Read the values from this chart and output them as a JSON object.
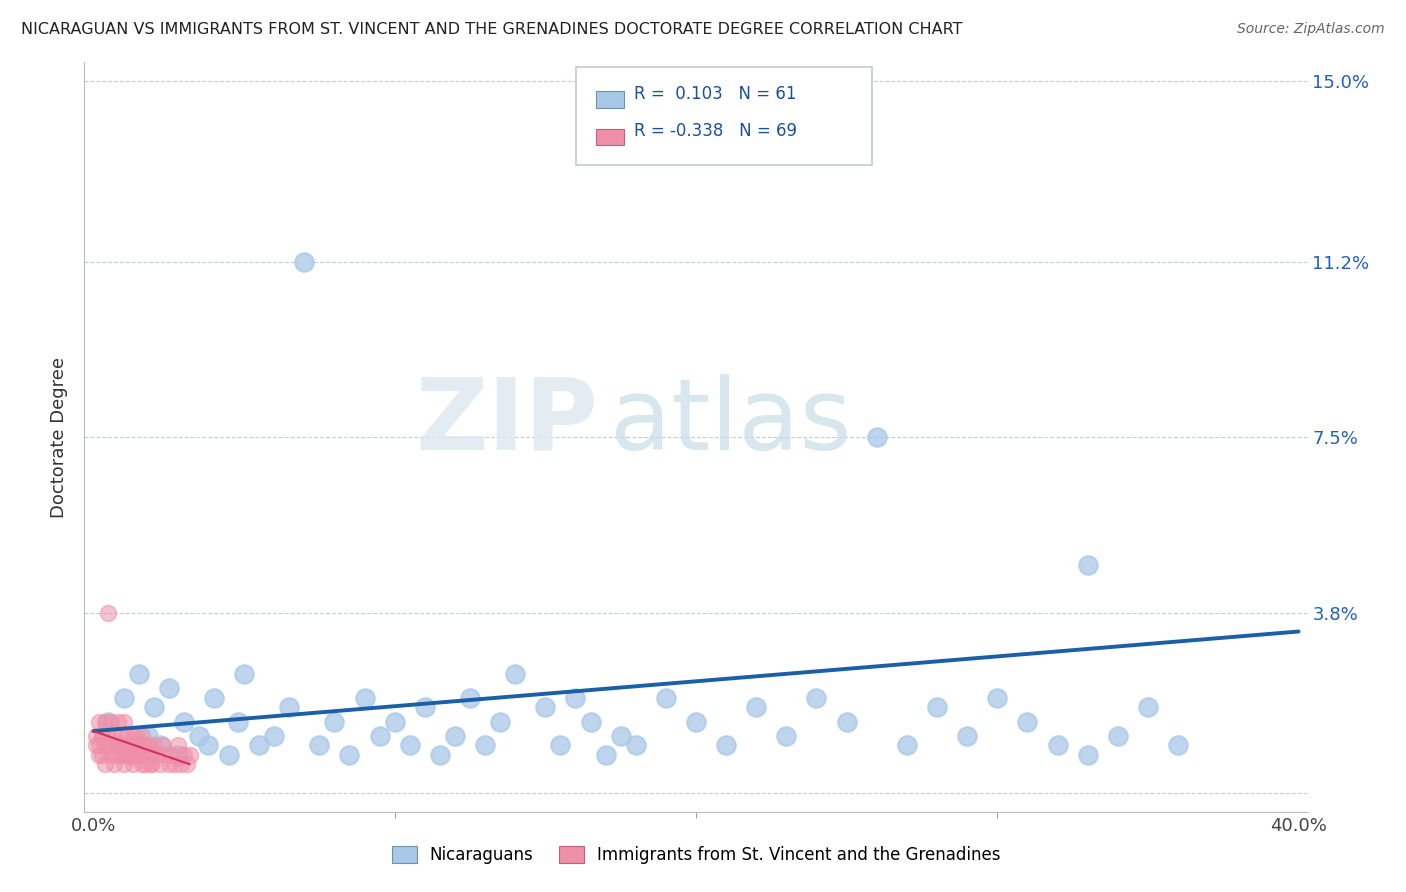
{
  "title": "NICARAGUAN VS IMMIGRANTS FROM ST. VINCENT AND THE GRENADINES DOCTORATE DEGREE CORRELATION CHART",
  "source": "Source: ZipAtlas.com",
  "ylabel": "Doctorate Degree",
  "xlim": [
    0.0,
    0.4
  ],
  "ylim": [
    0.0,
    0.15
  ],
  "yticks": [
    0.0,
    0.038,
    0.075,
    0.112,
    0.15
  ],
  "ytick_labels": [
    "",
    "3.8%",
    "7.5%",
    "11.2%",
    "15.0%"
  ],
  "xticks": [
    0.0,
    0.4
  ],
  "xtick_labels": [
    "0.0%",
    "40.0%"
  ],
  "blue_color": "#a8c8e8",
  "pink_color": "#f090a8",
  "line_blue_color": "#1a5fa8",
  "line_pink_color": "#d03060",
  "watermark_zip": "ZIP",
  "watermark_atlas": "atlas",
  "blue_x": [
    0.005,
    0.008,
    0.01,
    0.012,
    0.015,
    0.018,
    0.02,
    0.022,
    0.025,
    0.028,
    0.03,
    0.035,
    0.038,
    0.04,
    0.045,
    0.048,
    0.05,
    0.055,
    0.06,
    0.065,
    0.07,
    0.075,
    0.08,
    0.085,
    0.09,
    0.095,
    0.1,
    0.105,
    0.11,
    0.115,
    0.12,
    0.125,
    0.13,
    0.135,
    0.14,
    0.15,
    0.155,
    0.16,
    0.165,
    0.17,
    0.175,
    0.18,
    0.19,
    0.2,
    0.21,
    0.22,
    0.23,
    0.24,
    0.25,
    0.26,
    0.27,
    0.28,
    0.29,
    0.3,
    0.31,
    0.32,
    0.33,
    0.34,
    0.35,
    0.36,
    0.33
  ],
  "blue_y": [
    0.015,
    0.01,
    0.02,
    0.008,
    0.025,
    0.012,
    0.018,
    0.01,
    0.022,
    0.008,
    0.015,
    0.012,
    0.01,
    0.02,
    0.008,
    0.015,
    0.025,
    0.01,
    0.012,
    0.018,
    0.112,
    0.01,
    0.015,
    0.008,
    0.02,
    0.012,
    0.015,
    0.01,
    0.018,
    0.008,
    0.012,
    0.02,
    0.01,
    0.015,
    0.025,
    0.018,
    0.01,
    0.02,
    0.015,
    0.008,
    0.012,
    0.01,
    0.02,
    0.015,
    0.01,
    0.018,
    0.012,
    0.02,
    0.015,
    0.075,
    0.01,
    0.018,
    0.012,
    0.02,
    0.015,
    0.01,
    0.048,
    0.012,
    0.018,
    0.01,
    0.008
  ],
  "pink_x": [
    0.001,
    0.002,
    0.002,
    0.003,
    0.003,
    0.004,
    0.004,
    0.005,
    0.005,
    0.006,
    0.006,
    0.007,
    0.007,
    0.008,
    0.008,
    0.009,
    0.009,
    0.01,
    0.01,
    0.011,
    0.011,
    0.012,
    0.012,
    0.013,
    0.013,
    0.014,
    0.014,
    0.015,
    0.015,
    0.016,
    0.016,
    0.017,
    0.017,
    0.018,
    0.018,
    0.019,
    0.019,
    0.02,
    0.021,
    0.022,
    0.023,
    0.024,
    0.025,
    0.026,
    0.027,
    0.028,
    0.029,
    0.03,
    0.031,
    0.032,
    0.001,
    0.002,
    0.003,
    0.004,
    0.005,
    0.006,
    0.007,
    0.008,
    0.009,
    0.01,
    0.011,
    0.012,
    0.013,
    0.014,
    0.015,
    0.016,
    0.017,
    0.018,
    0.019
  ],
  "pink_y": [
    0.012,
    0.015,
    0.01,
    0.012,
    0.008,
    0.015,
    0.01,
    0.038,
    0.012,
    0.01,
    0.015,
    0.008,
    0.012,
    0.01,
    0.015,
    0.008,
    0.012,
    0.01,
    0.015,
    0.008,
    0.012,
    0.01,
    0.008,
    0.012,
    0.01,
    0.008,
    0.012,
    0.01,
    0.008,
    0.012,
    0.01,
    0.008,
    0.006,
    0.01,
    0.008,
    0.006,
    0.008,
    0.01,
    0.008,
    0.006,
    0.01,
    0.008,
    0.006,
    0.008,
    0.006,
    0.01,
    0.006,
    0.008,
    0.006,
    0.008,
    0.01,
    0.008,
    0.012,
    0.006,
    0.01,
    0.008,
    0.006,
    0.01,
    0.008,
    0.006,
    0.01,
    0.008,
    0.006,
    0.01,
    0.008,
    0.006,
    0.01,
    0.008,
    0.006
  ],
  "blue_line_x0": 0.0,
  "blue_line_x1": 0.4,
  "blue_line_y0": 0.013,
  "blue_line_y1": 0.034,
  "pink_line_x0": 0.0,
  "pink_line_x1": 0.032,
  "pink_line_y0": 0.013,
  "pink_line_y1": 0.006
}
